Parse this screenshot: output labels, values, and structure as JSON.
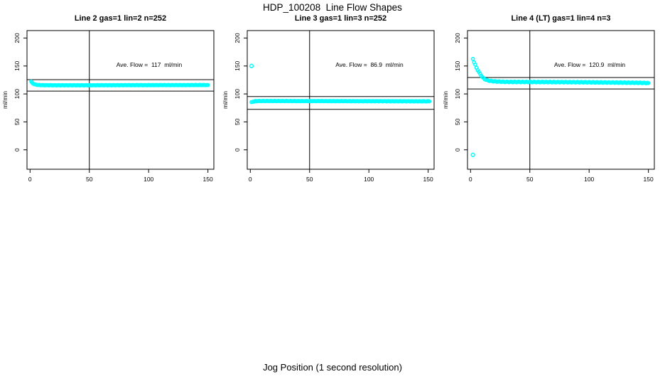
{
  "page": {
    "title": "HDP_100208  Line Flow Shapes",
    "xlabel": "Jog Position (1 second resolution)",
    "background": "#FFFFFF",
    "point_color": "#00FFFF",
    "axis_color": "#000000"
  },
  "chart_data": [
    {
      "type": "scatter",
      "title": "Line 2 gas=1 lin=2 n=252",
      "annotation": "Ave. Flow =  117  ml/min",
      "ave_flow_ml_min": 117,
      "n": 252,
      "ylabel": "ml/min",
      "xlim": [
        0,
        150
      ],
      "ylim": [
        0,
        200
      ],
      "xticks": [
        0,
        50,
        100,
        150
      ],
      "yticks": [
        0,
        50,
        100,
        150,
        200
      ],
      "vline_x": 50,
      "hlines": [
        125.5,
        105
      ],
      "marker": "open-circle",
      "color": "#00FFFF",
      "band_jitter": 0.3,
      "outliers": [],
      "points": [
        [
          1,
          122
        ],
        [
          1.5,
          120.5
        ],
        [
          2,
          119.5
        ],
        [
          3,
          118
        ],
        [
          4,
          117.2
        ],
        [
          5,
          116.6
        ],
        [
          6,
          116.2
        ],
        [
          8,
          115.9
        ],
        [
          10,
          115.7
        ],
        [
          15,
          115.6
        ],
        [
          20,
          115.5
        ],
        [
          30,
          115.5
        ],
        [
          40,
          115.5
        ],
        [
          50,
          115.5
        ],
        [
          60,
          115.6
        ],
        [
          70,
          115.6
        ],
        [
          80,
          115.7
        ],
        [
          90,
          115.7
        ],
        [
          100,
          115.7
        ],
        [
          110,
          115.8
        ],
        [
          120,
          115.8
        ],
        [
          130,
          115.8
        ],
        [
          140,
          115.9
        ],
        [
          150,
          115.9
        ]
      ]
    },
    {
      "type": "scatter",
      "title": "Line 3 gas=1 lin=3 n=252",
      "annotation": "Ave. Flow =  86.9  ml/min",
      "ave_flow_ml_min": 86.9,
      "n": 252,
      "ylabel": "ml/min",
      "xlim": [
        0,
        150
      ],
      "ylim": [
        0,
        200
      ],
      "xticks": [
        0,
        50,
        100,
        150
      ],
      "yticks": [
        0,
        50,
        100,
        150,
        200
      ],
      "vline_x": 50,
      "hlines": [
        95.4,
        72.5
      ],
      "marker": "open-circle",
      "color": "#00FFFF",
      "band_jitter": 0.3,
      "outliers": [
        [
          1,
          150
        ]
      ],
      "points": [
        [
          1,
          85
        ],
        [
          2,
          86
        ],
        [
          3,
          86.5
        ],
        [
          4,
          87
        ],
        [
          6,
          87.2
        ],
        [
          10,
          87.3
        ],
        [
          20,
          87.3
        ],
        [
          30,
          87.3
        ],
        [
          40,
          87.2
        ],
        [
          50,
          87.2
        ],
        [
          60,
          87.2
        ],
        [
          70,
          87.1
        ],
        [
          80,
          87.1
        ],
        [
          90,
          87
        ],
        [
          100,
          87
        ],
        [
          110,
          87
        ],
        [
          120,
          86.9
        ],
        [
          130,
          86.9
        ],
        [
          140,
          86.8
        ],
        [
          151,
          86.8
        ]
      ]
    },
    {
      "type": "scatter",
      "title": "Line 4 (LT) gas=1 lin=4 n=3",
      "annotation": "Ave. Flow =  120.9  ml/min",
      "ave_flow_ml_min": 120.9,
      "n": 3,
      "ylabel": "ml/min",
      "xlim": [
        0,
        150
      ],
      "ylim": [
        0,
        200
      ],
      "xticks": [
        0,
        50,
        100,
        150
      ],
      "yticks": [
        0,
        50,
        100,
        150,
        200
      ],
      "vline_x": 50,
      "hlines": [
        129.4,
        108.9
      ],
      "marker": "open-circle",
      "color": "#00FFFF",
      "band_jitter": 0.6,
      "outliers": [
        [
          2,
          -9
        ]
      ],
      "points": [
        [
          2,
          163
        ],
        [
          3,
          157
        ],
        [
          4,
          152
        ],
        [
          5,
          147
        ],
        [
          6,
          143
        ],
        [
          7,
          139
        ],
        [
          8,
          136
        ],
        [
          9,
          133
        ],
        [
          10,
          130
        ],
        [
          11,
          128
        ],
        [
          12,
          126.5
        ],
        [
          13,
          125.5
        ],
        [
          14,
          124.5
        ],
        [
          15,
          124
        ],
        [
          16,
          123.5
        ],
        [
          18,
          123
        ],
        [
          20,
          122.5
        ],
        [
          22,
          122.2
        ],
        [
          25,
          122
        ],
        [
          28,
          121.8
        ],
        [
          30,
          121.6
        ],
        [
          35,
          121.5
        ],
        [
          40,
          121.5
        ],
        [
          50,
          121.4
        ],
        [
          60,
          121.3
        ],
        [
          70,
          121.2
        ],
        [
          80,
          121.1
        ],
        [
          90,
          121
        ],
        [
          100,
          120.8
        ],
        [
          110,
          120.6
        ],
        [
          120,
          120.4
        ],
        [
          130,
          120.2
        ],
        [
          140,
          120
        ],
        [
          145,
          119.8
        ],
        [
          150,
          119.5
        ]
      ]
    }
  ]
}
